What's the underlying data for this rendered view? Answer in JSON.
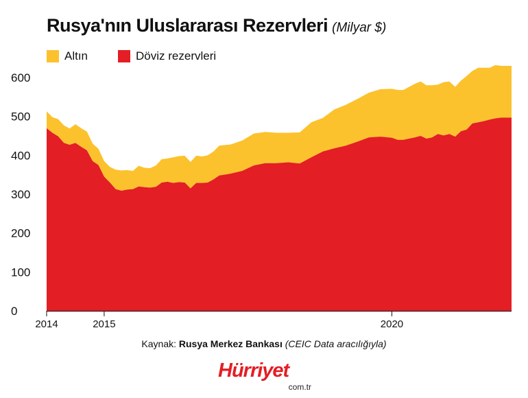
{
  "header": {
    "title": "Rusya'nın Uluslararası Rezervleri",
    "subtitle": "(Milyar $)"
  },
  "source": {
    "prefix": "Kaynak:",
    "name": "Rusya Merkez Bankası",
    "note": "(CEIC Data aracılığıyla)"
  },
  "brand": {
    "name": "Hürriyet",
    "tld": "com.tr"
  },
  "colors": {
    "gold": "#fcc22d",
    "fx": "#e31e24"
  },
  "chart_data": {
    "type": "area",
    "stacked": true,
    "xlim": [
      2014.0,
      2022.08
    ],
    "ylim": [
      0,
      630
    ],
    "y_ticks": [
      0,
      100,
      200,
      300,
      400,
      500,
      600
    ],
    "x_ticks": [
      {
        "value": 2014,
        "label": "2014"
      },
      {
        "value": 2015,
        "label": "2015"
      },
      {
        "value": 2020,
        "label": "2020"
      }
    ],
    "grid": false,
    "legend_position": "top-left",
    "x": [
      2014.0,
      2014.1,
      2014.2,
      2014.3,
      2014.4,
      2014.5,
      2014.6,
      2014.7,
      2014.8,
      2014.9,
      2015.0,
      2015.1,
      2015.2,
      2015.3,
      2015.4,
      2015.5,
      2015.6,
      2015.7,
      2015.8,
      2015.9,
      2016.0,
      2016.1,
      2016.2,
      2016.3,
      2016.4,
      2016.5,
      2016.6,
      2016.7,
      2016.8,
      2016.9,
      2017.0,
      2017.2,
      2017.4,
      2017.6,
      2017.8,
      2018.0,
      2018.2,
      2018.4,
      2018.6,
      2018.8,
      2019.0,
      2019.2,
      2019.4,
      2019.6,
      2019.8,
      2020.0,
      2020.1,
      2020.2,
      2020.4,
      2020.5,
      2020.6,
      2020.7,
      2020.8,
      2020.9,
      2021.0,
      2021.1,
      2021.2,
      2021.3,
      2021.4,
      2021.5,
      2021.6,
      2021.7,
      2021.8,
      2021.9,
      2022.0,
      2022.08
    ],
    "series": [
      {
        "name": "Döviz rezervleri",
        "color": "#e31e24",
        "values": [
          470,
          458,
          449,
          432,
          427,
          432,
          422,
          413,
          385,
          375,
          345,
          330,
          313,
          309,
          312,
          313,
          320,
          318,
          317,
          319,
          330,
          332,
          329,
          331,
          330,
          315,
          329,
          329,
          330,
          338,
          348,
          353,
          360,
          374,
          380,
          380,
          382,
          379,
          395,
          410,
          418,
          425,
          435,
          446,
          448,
          445,
          440,
          440,
          446,
          450,
          443,
          446,
          455,
          451,
          455,
          448,
          462,
          466,
          482,
          485,
          488,
          492,
          495,
          497,
          497,
          497
        ]
      },
      {
        "name": "Altın",
        "color": "#fcc22d",
        "values": [
          43,
          40,
          44,
          45,
          42,
          48,
          48,
          48,
          45,
          42,
          40,
          40,
          50,
          52,
          50,
          47,
          53,
          50,
          50,
          55,
          60,
          60,
          66,
          67,
          69,
          68,
          70,
          68,
          70,
          72,
          77,
          75,
          78,
          82,
          80,
          78,
          76,
          80,
          90,
          86,
          100,
          105,
          110,
          115,
          122,
          126,
          128,
          128,
          138,
          140,
          137,
          134,
          127,
          137,
          135,
          128,
          130,
          138,
          135,
          140,
          137,
          133,
          137,
          133,
          133,
          133
        ]
      }
    ]
  }
}
